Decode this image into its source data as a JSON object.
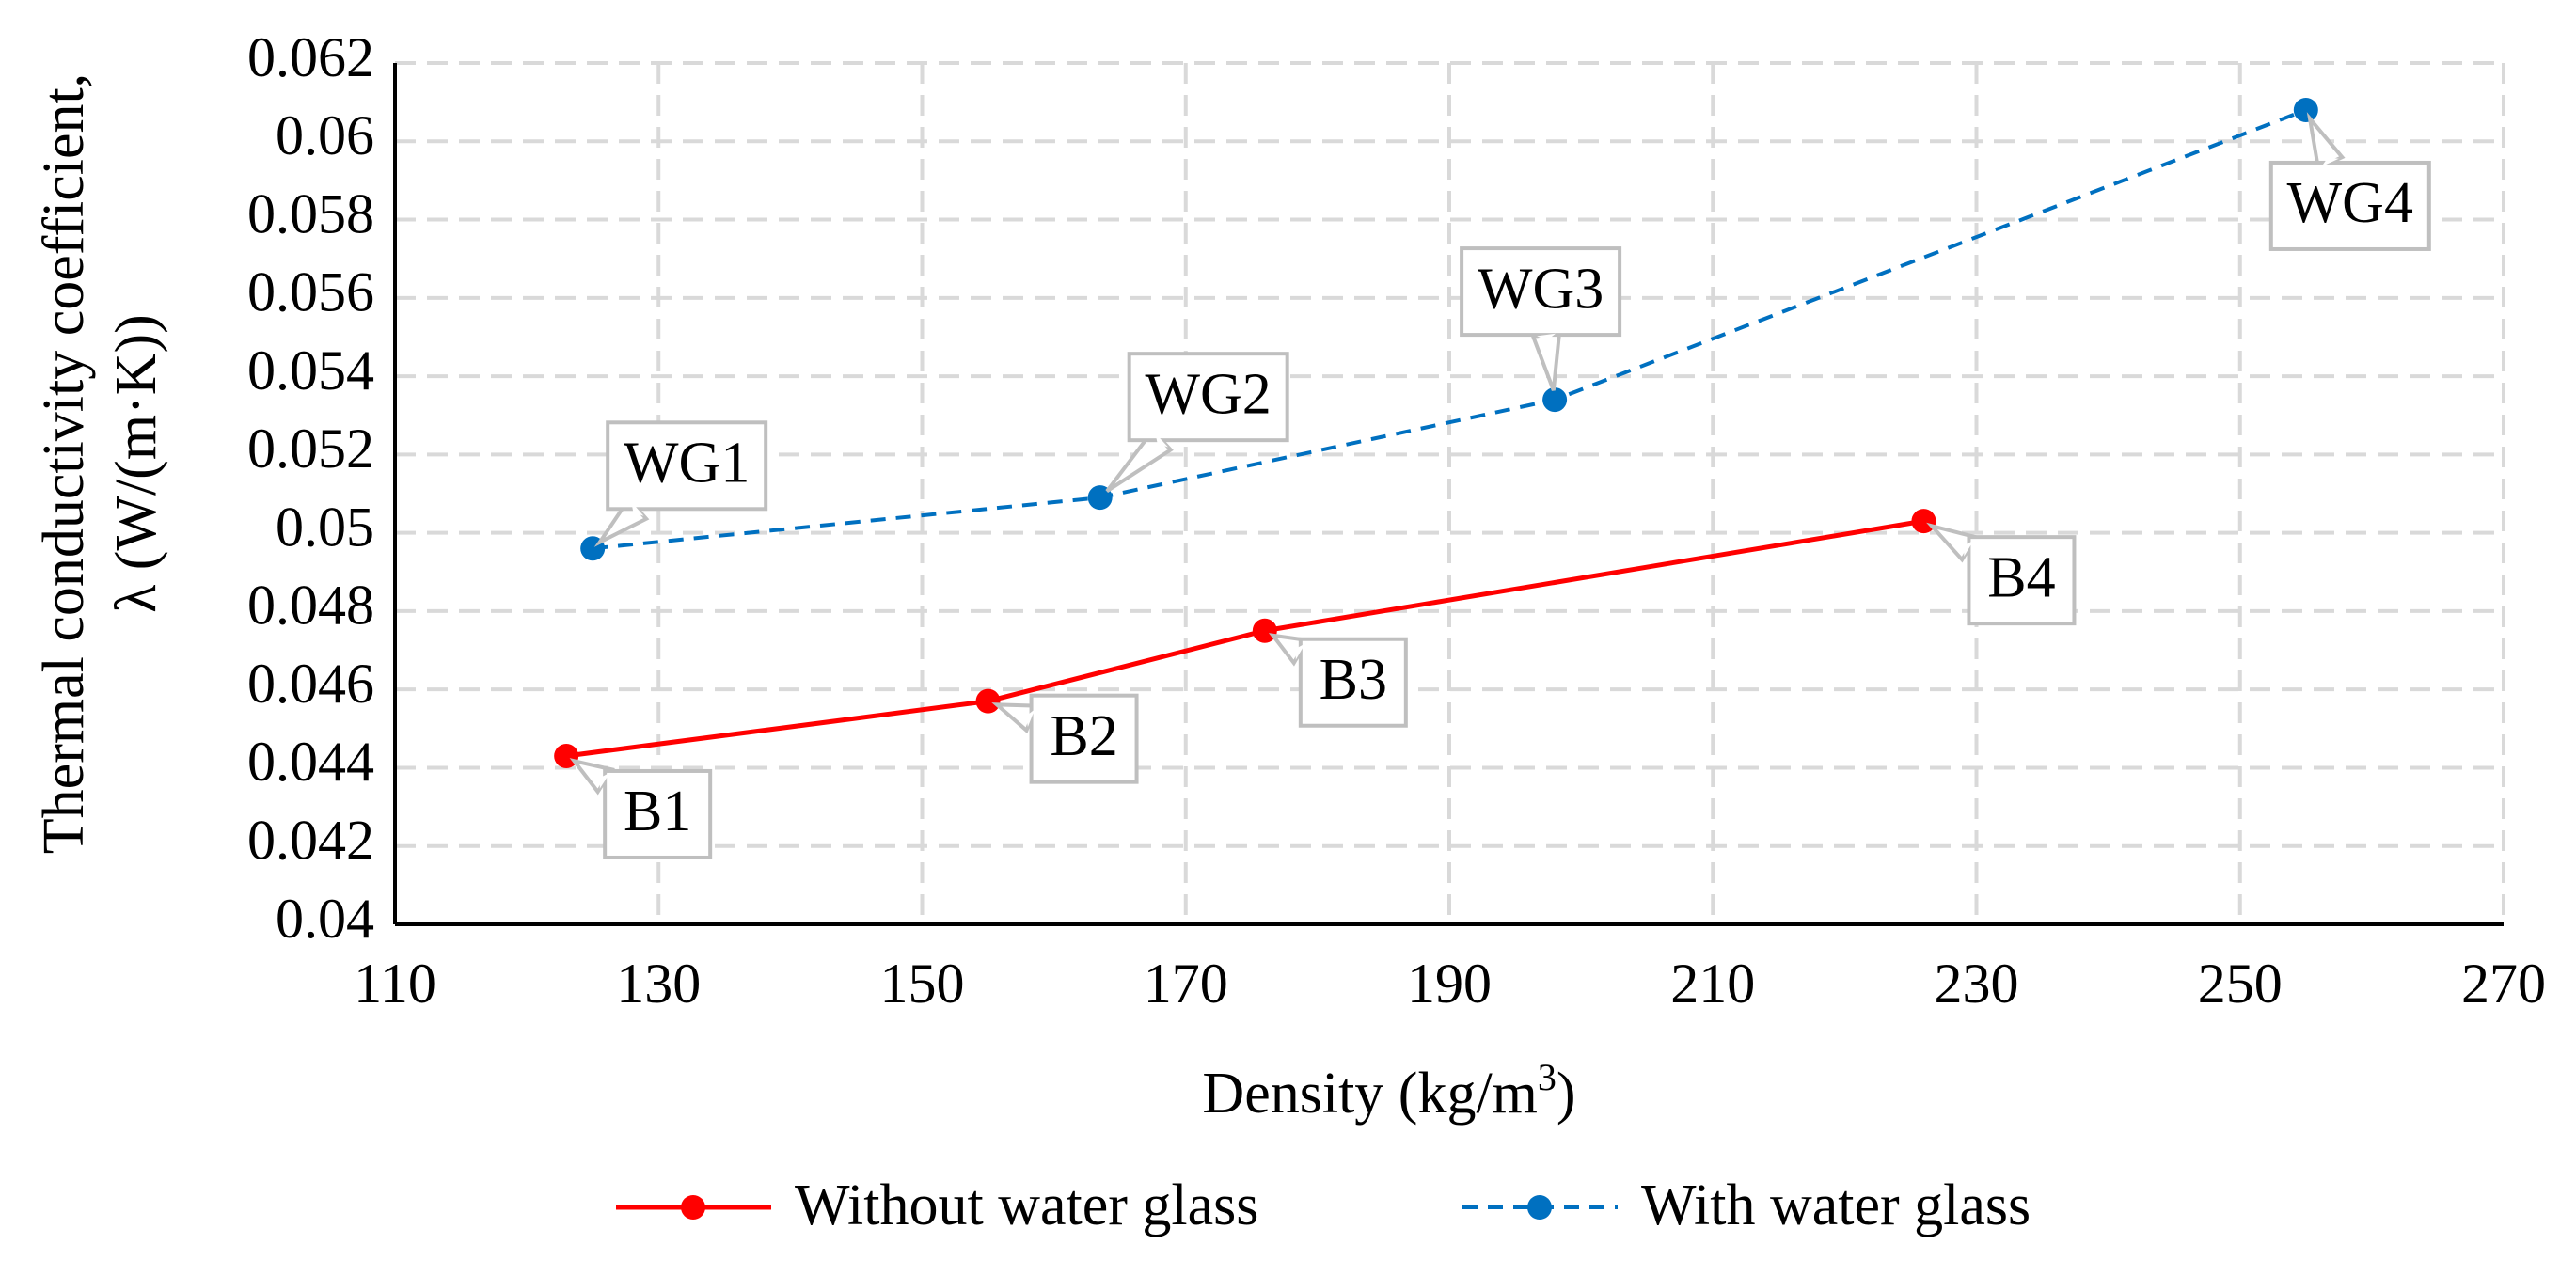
{
  "chart_data": {
    "type": "line",
    "title": "",
    "xlabel": "Density (kg/m3)",
    "xlabel_parts": {
      "main": "Density (kg/m",
      "sup": "3",
      "end": ")"
    },
    "ylabel_lines": [
      "Thermal conductivity coefficient,",
      "λ (W/(m·K))"
    ],
    "xlim": [
      110,
      270
    ],
    "ylim": [
      0.04,
      0.062
    ],
    "x_ticks": [
      "110",
      "130",
      "150",
      "170",
      "190",
      "210",
      "230",
      "250",
      "270"
    ],
    "x_tick_values": [
      110,
      130,
      150,
      170,
      190,
      210,
      230,
      250,
      270
    ],
    "y_ticks": [
      "0.04",
      "0.042",
      "0.044",
      "0.046",
      "0.048",
      "0.05",
      "0.052",
      "0.054",
      "0.056",
      "0.058",
      "0.06",
      "0.062"
    ],
    "y_tick_values": [
      0.04,
      0.042,
      0.044,
      0.046,
      0.048,
      0.05,
      0.052,
      0.054,
      0.056,
      0.058,
      0.06,
      0.062
    ],
    "grid": true,
    "legend_position": "bottom",
    "series": [
      {
        "name": "Without water glass",
        "color": "#ff0000",
        "line_style": "solid",
        "points": [
          {
            "label": "B1",
            "x": 123,
            "y": 0.0443
          },
          {
            "label": "B2",
            "x": 155,
            "y": 0.0457
          },
          {
            "label": "B3",
            "x": 176,
            "y": 0.0475
          },
          {
            "label": "B4",
            "x": 226,
            "y": 0.0503
          }
        ]
      },
      {
        "name": "With water glass",
        "color": "#0070c0",
        "line_style": "dashed",
        "points": [
          {
            "label": "WG1",
            "x": 125,
            "y": 0.0496
          },
          {
            "label": "WG2",
            "x": 163.5,
            "y": 0.0509
          },
          {
            "label": "WG3",
            "x": 198,
            "y": 0.0534
          },
          {
            "label": "WG4",
            "x": 255,
            "y": 0.0608
          }
        ]
      }
    ]
  }
}
